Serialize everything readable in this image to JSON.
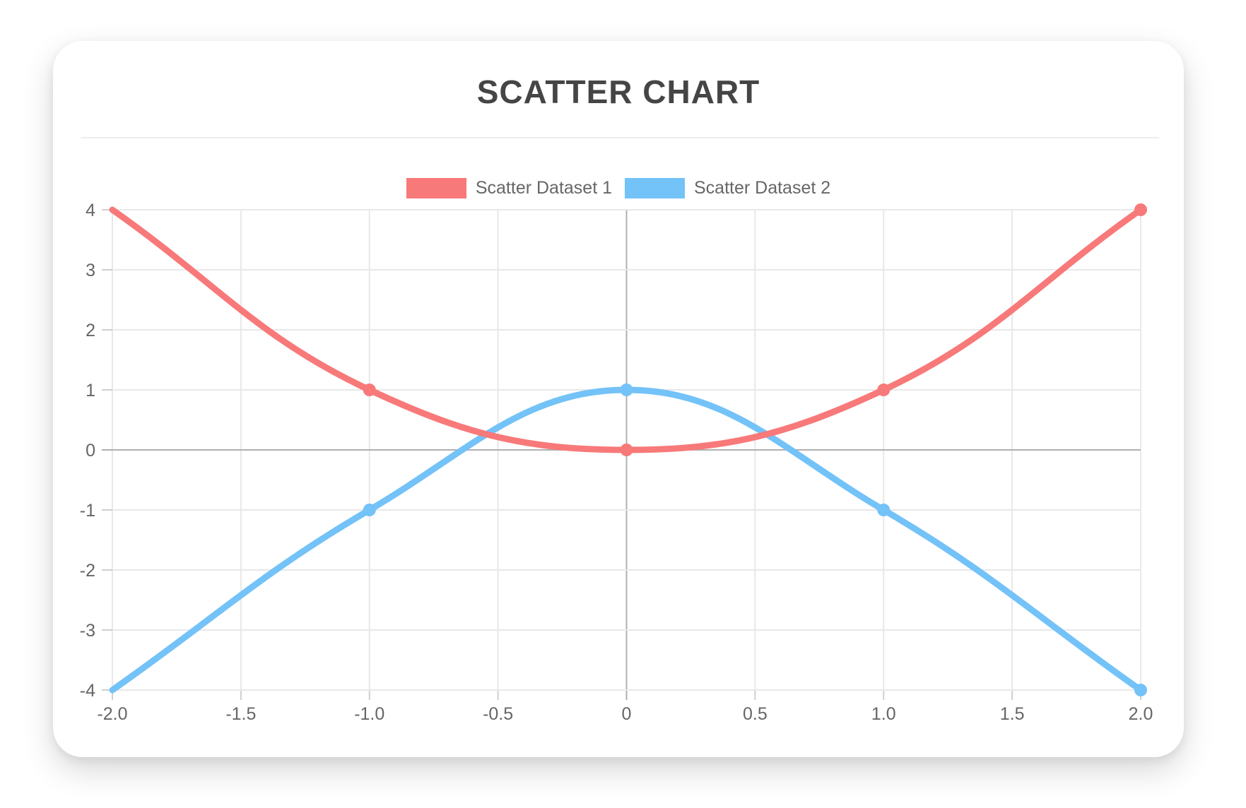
{
  "chart_data": {
    "type": "scatter",
    "title": "SCATTER CHART",
    "legend_position": "top",
    "grid": true,
    "xlim": [
      -2,
      2
    ],
    "ylim": [
      -4,
      4
    ],
    "x_tick_values": [
      -2,
      -1.5,
      -1,
      -0.5,
      0,
      0.5,
      1,
      1.5,
      2
    ],
    "x_tick_labels": [
      "-2.0",
      "-1.5",
      "-1.0",
      "-0.5",
      "0",
      "0.5",
      "1.0",
      "1.5",
      "2.0"
    ],
    "y_tick_values": [
      4,
      3,
      2,
      1,
      0,
      -1,
      -2,
      -3,
      -4
    ],
    "y_tick_labels": [
      "4",
      "3",
      "2",
      "1",
      "0",
      "-1",
      "-2",
      "-3",
      "-4"
    ],
    "series": [
      {
        "name": "Scatter Dataset 1",
        "color": "#f87979",
        "points": [
          [
            -2,
            4
          ],
          [
            -1,
            1
          ],
          [
            0,
            0
          ],
          [
            1,
            1
          ],
          [
            2,
            4
          ]
        ]
      },
      {
        "name": "Scatter Dataset 2",
        "color": "#73c2f8",
        "points": [
          [
            -2,
            -4
          ],
          [
            -1,
            -1
          ],
          [
            0,
            1
          ],
          [
            1,
            -1
          ],
          [
            2,
            -4
          ]
        ]
      }
    ],
    "line_tension": 0.4,
    "line_width": 9,
    "point_radius": 9,
    "first_point_marker_hidden": true
  },
  "style_colors": {
    "grid_line": "#e8e8e8",
    "zero_line": "#b0b0b0",
    "tick_mark": "#cfcfcf",
    "tick_label": "#666666",
    "title": "#454545",
    "legend_label": "#666666",
    "divider": "#ededed",
    "card_background": "#ffffff"
  }
}
